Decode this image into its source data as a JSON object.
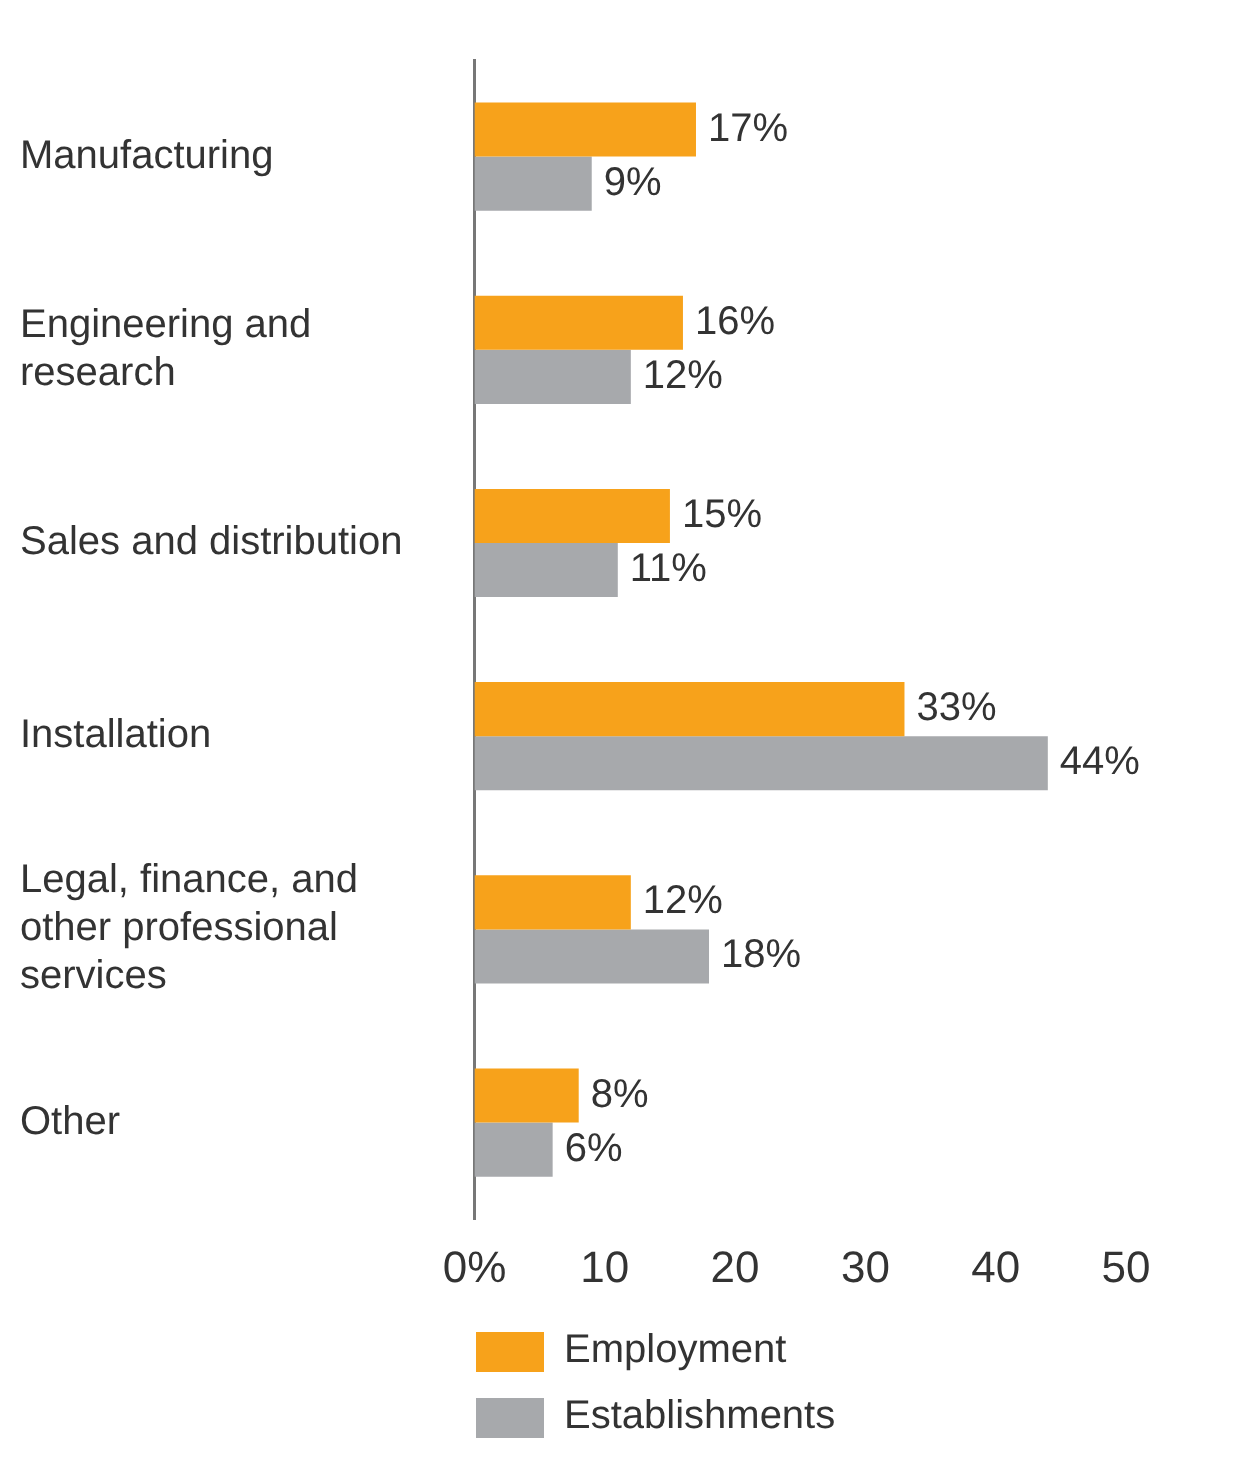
{
  "chart_data": {
    "type": "bar",
    "orientation": "horizontal",
    "categories": [
      "Manufacturing",
      "Engineering and research",
      "Sales and distribution",
      "Installation",
      "Legal, finance, and other professional services",
      "Other"
    ],
    "series": [
      {
        "name": "Employment",
        "color": "#f7a21b",
        "values": [
          17,
          16,
          15,
          33,
          12,
          8
        ],
        "value_labels": [
          "17%",
          "16%",
          "15%",
          "33%",
          "12%",
          "8%"
        ]
      },
      {
        "name": "Establishments",
        "color": "#a7a9ac",
        "values": [
          9,
          12,
          11,
          44,
          18,
          6
        ],
        "value_labels": [
          "9%",
          "12%",
          "11%",
          "44%",
          "18%",
          "6%"
        ]
      }
    ],
    "xlim": [
      0,
      50
    ],
    "xticks": [
      {
        "value": 0,
        "label": "0%"
      },
      10,
      20,
      30,
      40,
      50
    ],
    "grid": false,
    "legend": "bottom"
  }
}
